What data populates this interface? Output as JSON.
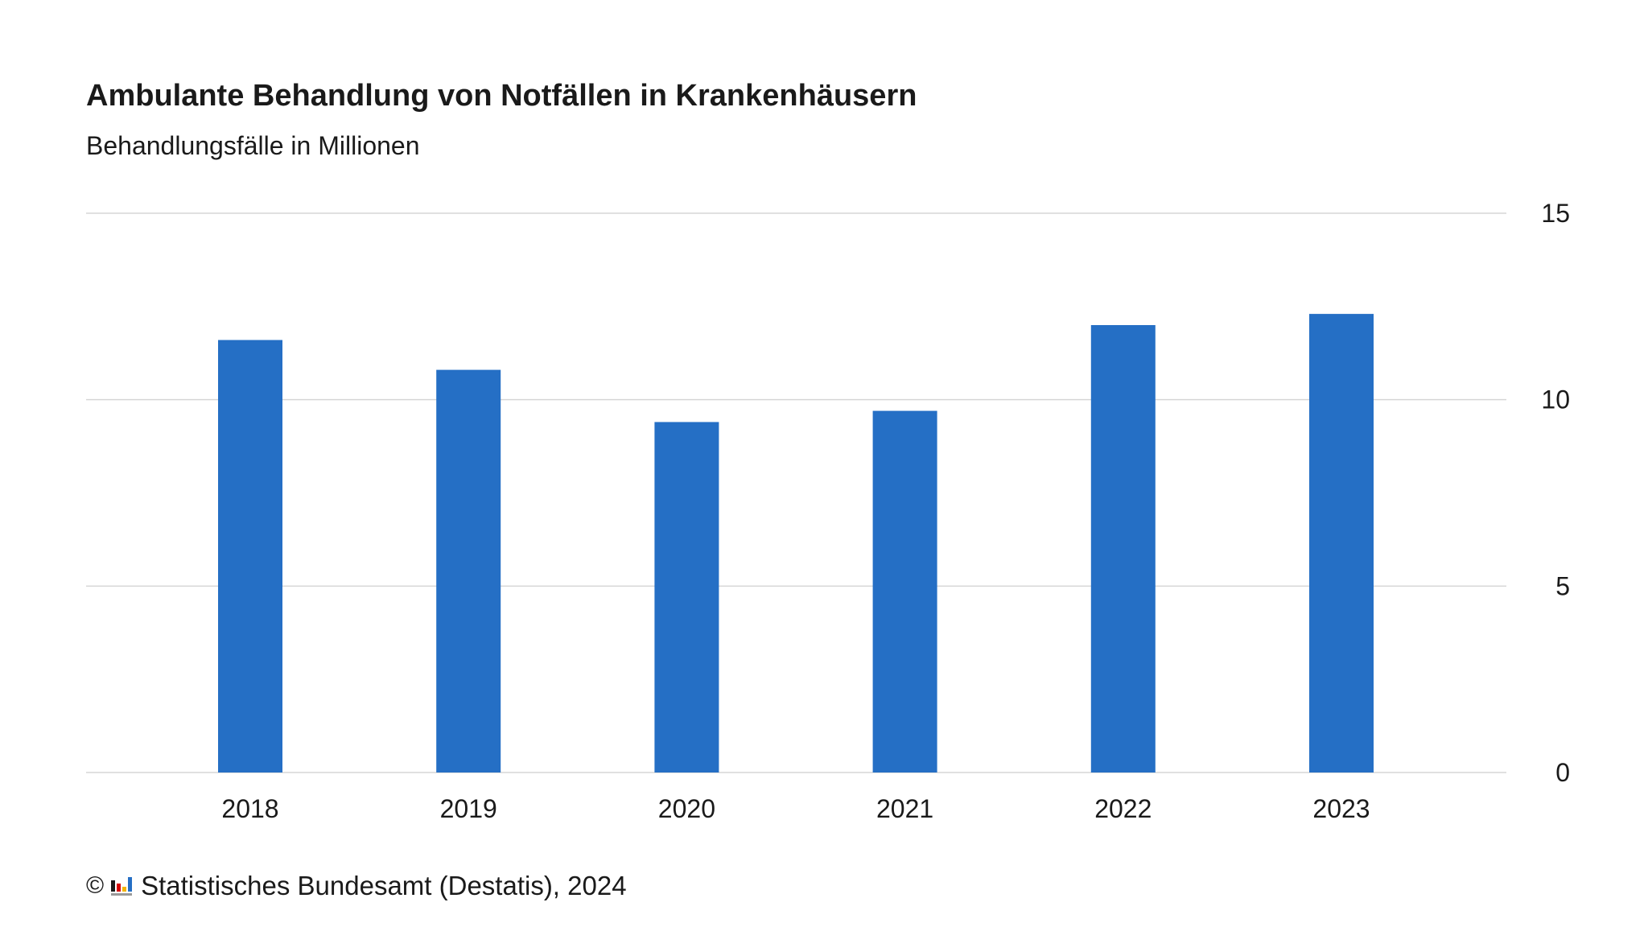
{
  "chart_data": {
    "type": "bar",
    "title": "Ambulante Behandlung von Notfällen in Krankenhäusern",
    "subtitle": "Behandlungsfälle in Millionen",
    "categories": [
      "2018",
      "2019",
      "2020",
      "2021",
      "2022",
      "2023"
    ],
    "values": [
      11.6,
      10.8,
      9.4,
      9.7,
      12.0,
      12.3
    ],
    "ylim": [
      0,
      15
    ],
    "yticks": [
      0,
      5,
      10,
      15
    ],
    "y_axis_position": "right",
    "grid": true,
    "legend": "none",
    "bar_color": "#256fc5"
  },
  "footer": {
    "copyright_symbol": "©",
    "source": "Statistisches Bundesamt (Destatis), 2024"
  },
  "colors": {
    "bar": "#256fc5",
    "gridline": "#d6d6d6",
    "text": "#1a1a1a"
  },
  "icons": {
    "logo": "destatis-bar-logo-icon"
  }
}
